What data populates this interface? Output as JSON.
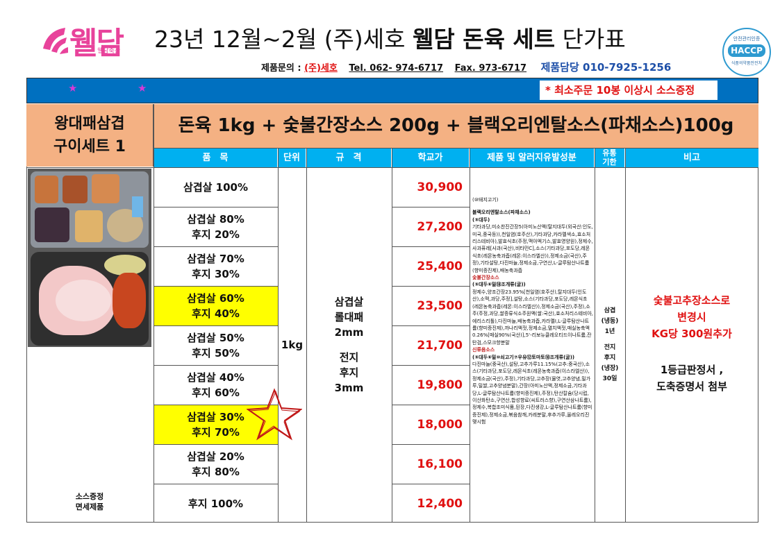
{
  "header": {
    "logo_text": "웰담",
    "logo_sub": "웰담축산",
    "title_prefix": "23년 12월~2월 (주)세호 ",
    "title_bold": "웰담 돈육 세트",
    "title_suffix": " 단가표",
    "contact_label": "제품문의 : ",
    "contact_company": "(주)세호",
    "tel": "Tel. 062- 974-6717",
    "fax": "Fax. 973-6717",
    "manager": "제품담당  010-7925-1256",
    "haccp_top": "안전관리인증",
    "haccp_mark": "HACCP",
    "haccp_bottom": "식품의약품안전처"
  },
  "banner": {
    "notice": "* 최소주문 10봉 이상시 소스증정",
    "stars": [
      "★",
      "★"
    ]
  },
  "set": {
    "name_line1": "왕대패삼겹",
    "name_line2": "구이세트 1",
    "composition": "돈육 1kg + 숯불간장소스 200g + 블랙오리엔탈소스(파채소스)100g"
  },
  "columns": {
    "product": "품　목",
    "unit": "단위",
    "spec": "규　격",
    "price": "학교가",
    "ingredients": "제품 및 알러지유발성분",
    "shelf_line1": "유통",
    "shelf_line2": "기한",
    "remarks": "비고"
  },
  "rows": [
    {
      "line1": "삼겹살 100%",
      "line2": "",
      "price": "30,900",
      "highlight": false
    },
    {
      "line1": "삼겹살 80%",
      "line2": "후지 20%",
      "price": "27,200",
      "highlight": false
    },
    {
      "line1": "삼겹살 70%",
      "line2": "후지 30%",
      "price": "25,400",
      "highlight": false
    },
    {
      "line1": "삼겹살 60%",
      "line2": "후지 40%",
      "price": "23,500",
      "highlight": true
    },
    {
      "line1": "삼겹살 50%",
      "line2": "후지 50%",
      "price": "21,700",
      "highlight": false
    },
    {
      "line1": "삼겹살 40%",
      "line2": "후지 60%",
      "price": "19,800",
      "highlight": false
    },
    {
      "line1": "삼겹살 30%",
      "line2": "후지 70%",
      "price": "18,000",
      "highlight": true
    },
    {
      "line1": "삼겹살 20%",
      "line2": "후지 80%",
      "price": "16,100",
      "highlight": false
    },
    {
      "line1": "후지 100%",
      "line2": "",
      "price": "12,400",
      "highlight": false
    }
  ],
  "unit": "1kg",
  "spec": {
    "line1": "삼겹살",
    "line2": "롤대패",
    "line3": "2mm",
    "line4": "전지",
    "line5": "후지",
    "line6": "3mm"
  },
  "ingredients": {
    "p1": "(⑩돼지고기)",
    "p2_title": "블랙오리엔탈소스(파채소스)",
    "p2_allergen": "(⑤대두)",
    "p2_body": "기타과당,미소찬진간장5(아미노산액(탈지대두(외국산:인도,미국,중국등)),천일염(호주산),기타과당,카라멜색소,효소처리스테비아),발효식초(주정,맥아엑기스,발효영양원),정제수,사과퓨레[사과(국산),비타민C],소스(기타과당,포도당,레몬식초(레몬농축과즙(레몬:이스라엘산)),정제소금(국산),주정),기타설탕,다진마늘,정제소금,구연산,L-글루탐산나트륨(향미증진제),배농축과즙",
    "p3_title": "숯불간장소스",
    "p3_allergen": "(⑤대두⑥밀⑱조개류(굴))",
    "p3_body": "정제수,양조간장23.95%[천일염(호주산),탈지대두(인도산),소맥,과당,주정],설탕,소스(기타과당,포도당,레몬식초(레몬농축과즙(레몬:이스라엘산)),정제소금(국산),주정),소주(주정,과당,쌀증류식소주원액(쌀:국산),효소처리스테비아,에리스리톨),다진마늘,배농축과즙,카라멜Ⅰ,L-글루탐산나트륨(향미증진제),까나리액젓,정제소금,멸치액젓,매실농축액0.26%[매실90%(국산)],5'-리보뉴클레오티드이나트륨,잔탄검,스모크향분말",
    "p4_title": "신류음소스",
    "p4_allergen": "(⑤대두⑥밀⑩쇠고기⑦우유⑫토마토⑱조개류(굴))",
    "p4_body": "다진마늘(중국산),설탕,고추가루11.15%(고추:중국산),소스(기타과당,포도당,레몬식초(레몬농축과즙(이스라엘산)),정제소금(국산),주정),기타과당,고추장(물엿,고추양념,밀가루,밀쌀,고추양념분말),간장(아미노산액,정제소금,기타과당,L-글루탐산나트륨(향미증진제),주정),탄산칼슘(당시럽,이산화탄소,구연산,합성향료(씨트러스향),구연산삼나트륨),정제수,복합조미식품,된장,다진생강,L-글루탐산나트륨(향미증진제),정제소금,볶음참깨,카레분말,후추가루,올레오리진맺시험"
  },
  "shelf": {
    "line1": "삼겹",
    "line2": "(냉동)",
    "line3": "1년",
    "line4": "전지",
    "line5": "후지",
    "line6": "(냉장)",
    "line7": "30일"
  },
  "remarks": {
    "red_line1": "숯불고추장소스로",
    "red_line2": "변경시",
    "red_line3": "KG당 300원추가",
    "line1": "1등급판정서 ,",
    "line2": "도축증명서 첨부"
  },
  "note": {
    "line1": "소스증정",
    "line2": "면세제품"
  },
  "colors": {
    "peach": "#f4b183",
    "header_blue": "#00b0f0",
    "banner_blue": "#0070c0",
    "highlight_yellow": "#ffff00",
    "price_red": "#e01010",
    "logo_pink": "#e8439b"
  }
}
